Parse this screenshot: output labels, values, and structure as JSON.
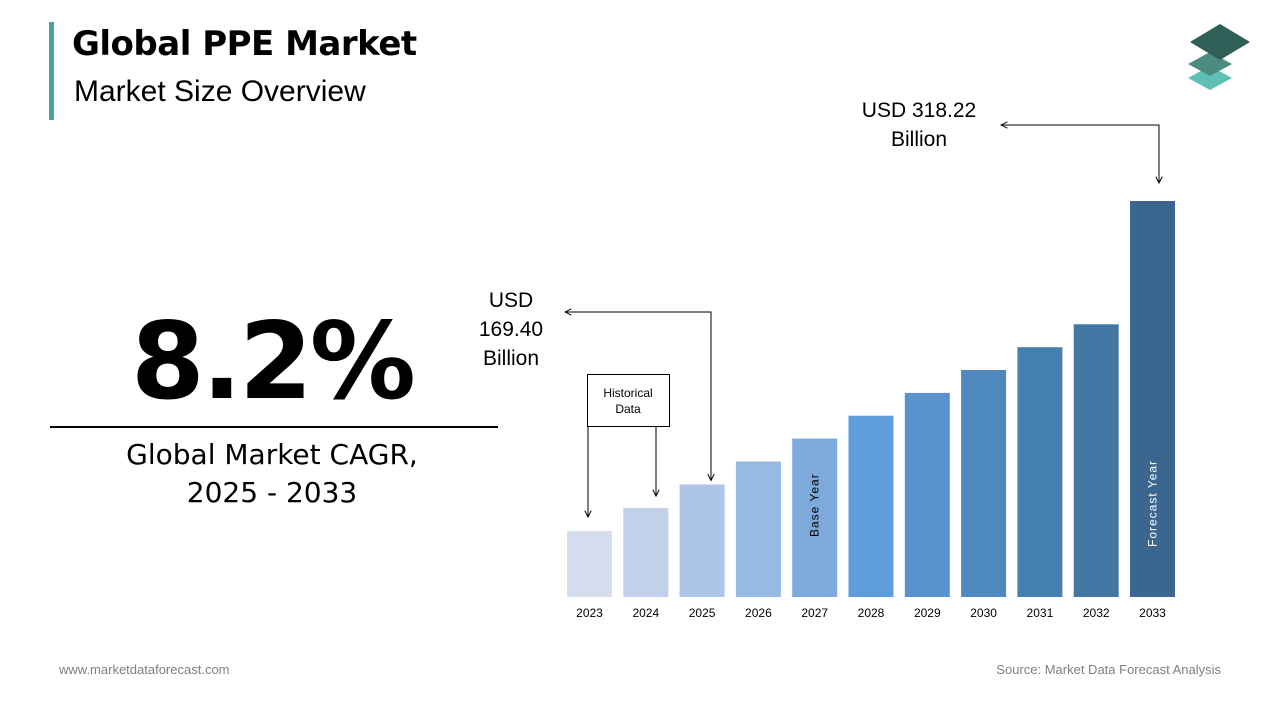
{
  "header": {
    "title": "Global PPE Market",
    "subtitle": "Market Size Overview"
  },
  "cagr": {
    "value": "8.2%",
    "label_line1": "Global Market CAGR,",
    "label_line2": "2025 - 2033"
  },
  "annotations": {
    "start_value_lines": [
      "USD",
      "169.40",
      "Billion"
    ],
    "end_value_lines": [
      "USD 318.22",
      "Billion"
    ],
    "historical_lines": [
      "Historical",
      "Data"
    ],
    "base_year_label": "Base Year",
    "forecast_year_label": "Forecast Year"
  },
  "chart_data": {
    "type": "bar",
    "categories": [
      "2023",
      "2024",
      "2025",
      "2026",
      "2027",
      "2028",
      "2029",
      "2030",
      "2031",
      "2032",
      "2033"
    ],
    "values": [
      145.0,
      157.0,
      169.4,
      181.5,
      193.5,
      205.5,
      217.5,
      229.5,
      241.5,
      253.5,
      318.22
    ],
    "colors": [
      "#d4deee",
      "#c1d1ea",
      "#adc6e7",
      "#98b9e1",
      "#7eaadb",
      "#5e9dd9",
      "#5893ce",
      "#4f89be",
      "#4680b3",
      "#4276a3",
      "#3a6690"
    ],
    "base_year_index": 4,
    "forecast_year_index": 10,
    "title": "",
    "xlabel": "",
    "ylabel": "",
    "grid": false
  },
  "footer": {
    "website": "www.marketdataforecast.com",
    "source": "Source: Market Data Forecast Analysis"
  },
  "logo_colors": [
    "#2f5f57",
    "#4a8c80",
    "#5ebfb5"
  ]
}
